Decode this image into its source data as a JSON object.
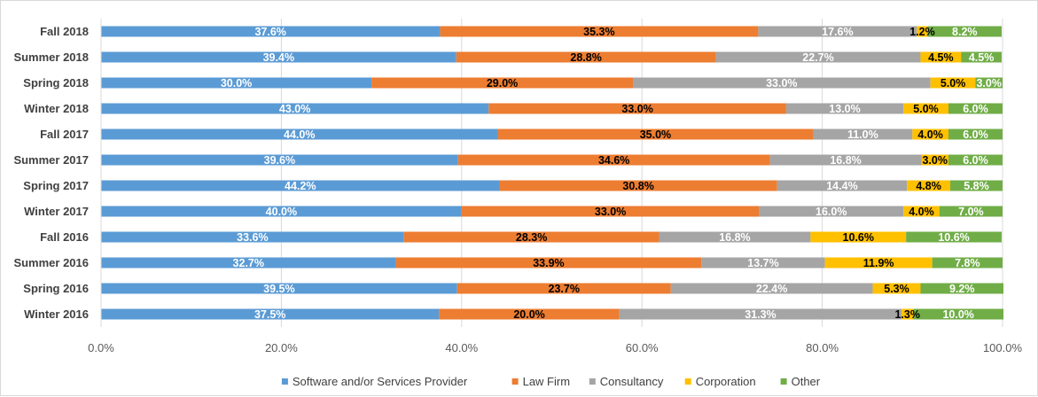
{
  "chart_data": {
    "type": "bar",
    "orientation": "horizontal",
    "stacked": "percent",
    "categories": [
      "Fall 2018",
      "Summer 2018",
      "Spring 2018",
      "Winter 2018",
      "Fall 2017",
      "Summer 2017",
      "Spring 2017",
      "Winter 2017",
      "Fall 2016",
      "Summer 2016",
      "Spring 2016",
      "Winter 2016"
    ],
    "series": [
      {
        "name": "Software and/or Services Provider",
        "color": "#5b9bd5",
        "label_color": "#ffffff",
        "values": [
          37.6,
          39.4,
          30.0,
          43.0,
          44.0,
          39.6,
          44.2,
          40.0,
          33.6,
          32.7,
          39.5,
          37.5
        ],
        "labels": [
          "37.6%",
          "39.4%",
          "30.0%",
          "43.0%",
          "44.0%",
          "39.6%",
          "44.2%",
          "40.0%",
          "33.6%",
          "32.7%",
          "39.5%",
          "37.5%"
        ]
      },
      {
        "name": "Law Firm",
        "color": "#ed7d31",
        "label_color": "#000000",
        "values": [
          35.3,
          28.8,
          29.0,
          33.0,
          35.0,
          34.6,
          30.8,
          33.0,
          28.3,
          33.9,
          23.7,
          20.0
        ],
        "labels": [
          "35.3%",
          "28.8%",
          "29.0%",
          "33.0%",
          "35.0%",
          "34.6%",
          "30.8%",
          "33.0%",
          "28.3%",
          "33.9%",
          "23.7%",
          "20.0%"
        ]
      },
      {
        "name": "Consultancy",
        "color": "#a5a5a5",
        "label_color": "#ffffff",
        "values": [
          17.6,
          22.7,
          33.0,
          13.0,
          11.0,
          16.8,
          14.4,
          16.0,
          16.8,
          13.7,
          22.4,
          31.3
        ],
        "labels": [
          "17.6%",
          "22.7%",
          "33.0%",
          "13.0%",
          "11.0%",
          "16.8%",
          "14.4%",
          "16.0%",
          "16.8%",
          "13.7%",
          "22.4%",
          "31.3%"
        ]
      },
      {
        "name": "Corporation",
        "color": "#ffc000",
        "label_color": "#000000",
        "values": [
          1.2,
          4.5,
          5.0,
          5.0,
          4.0,
          3.0,
          4.8,
          4.0,
          10.6,
          11.9,
          5.3,
          1.3
        ],
        "labels": [
          "1.2%",
          "4.5%",
          "5.0%",
          "5.0%",
          "4.0%",
          "3.0%",
          "4.8%",
          "4.0%",
          "10.6%",
          "11.9%",
          "5.3%",
          "1.3%"
        ]
      },
      {
        "name": "Other",
        "color": "#70ad47",
        "label_color": "#ffffff",
        "values": [
          8.2,
          4.5,
          3.0,
          6.0,
          6.0,
          6.0,
          5.8,
          7.0,
          10.6,
          7.8,
          9.2,
          10.0
        ],
        "labels": [
          "8.2%",
          "4.5%",
          "3.0%",
          "6.0%",
          "6.0%",
          "6.0%",
          "5.8%",
          "7.0%",
          "10.6%",
          "7.8%",
          "9.2%",
          "10.0%"
        ]
      }
    ],
    "xlim": [
      0,
      100
    ],
    "x_ticks": [
      "0.0%",
      "20.0%",
      "40.0%",
      "60.0%",
      "80.0%",
      "100.0%"
    ],
    "x_tick_values": [
      0,
      20,
      40,
      60,
      80,
      100
    ],
    "grid": "vertical",
    "legend": "bottom",
    "title": "",
    "xlabel": "",
    "ylabel": ""
  }
}
